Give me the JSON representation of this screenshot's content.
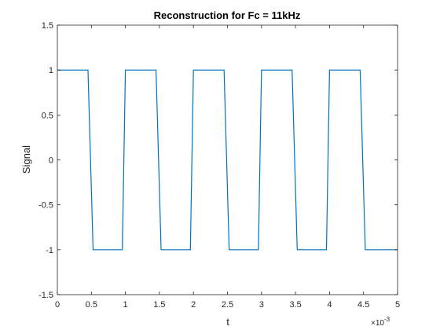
{
  "chart_data": {
    "type": "line",
    "title": "Reconstruction for Fc = 11kHz",
    "xlabel": "t",
    "ylabel": "Signal",
    "xlim": [
      0,
      0.005
    ],
    "ylim": [
      -1.5,
      1.5
    ],
    "x_exponent_label": "×10",
    "x_exponent_power": "-3",
    "x_ticks": [
      0,
      0.0005,
      0.001,
      0.0015,
      0.002,
      0.0025,
      0.003,
      0.0035,
      0.004,
      0.0045,
      0.005
    ],
    "x_tick_labels": [
      "0",
      "0.5",
      "1",
      "1.5",
      "2",
      "2.5",
      "3",
      "3.5",
      "4",
      "4.5",
      "5"
    ],
    "y_ticks": [
      1.5,
      1,
      0.5,
      0,
      -0.5,
      -1,
      -1.5
    ],
    "y_tick_labels": [
      "1.5",
      "1",
      "0.5",
      "0",
      "-0.5",
      "-1",
      "-1.5"
    ],
    "grid": false,
    "series": [
      {
        "color": "#0072bd",
        "x": [
          0,
          0.00045,
          0.000525,
          0.000955,
          0.001,
          0.00145,
          0.001525,
          0.001955,
          0.002,
          0.00245,
          0.002525,
          0.002955,
          0.003,
          0.00345,
          0.003525,
          0.003955,
          0.004,
          0.00445,
          0.004525,
          0.005
        ],
        "y": [
          1,
          1,
          -1,
          -1,
          1,
          1,
          -1,
          -1,
          1,
          1,
          -1,
          -1,
          1,
          1,
          -1,
          -1,
          1,
          1,
          -1,
          -1
        ]
      }
    ]
  }
}
